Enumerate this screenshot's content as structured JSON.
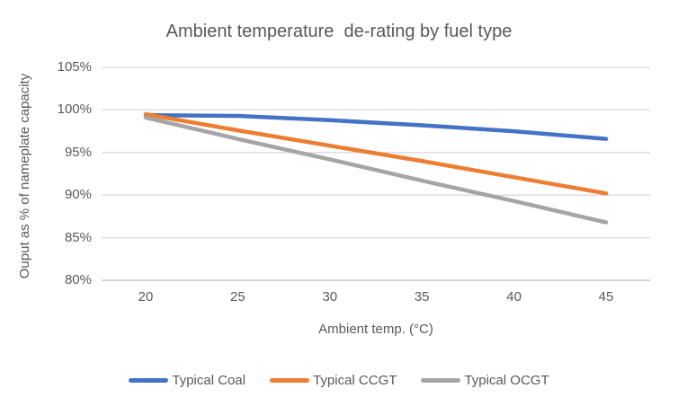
{
  "chart_data": {
    "type": "line",
    "title": "Ambient temperature  de-rating by fuel type",
    "xlabel": "Ambient temp. (°C)",
    "ylabel": "Ouput as % of nameplate capacity",
    "x": [
      20,
      25,
      30,
      35,
      40,
      45
    ],
    "x_tick_labels": [
      "20",
      "25",
      "30",
      "35",
      "40",
      "45"
    ],
    "y_ticks": [
      80,
      85,
      90,
      95,
      100,
      105
    ],
    "y_tick_labels": [
      "80%",
      "85%",
      "90%",
      "95%",
      "100%",
      "105%"
    ],
    "ylim": [
      80,
      105
    ],
    "xlim": [
      20,
      45
    ],
    "grid": "horizontal",
    "legend_position": "bottom",
    "series": [
      {
        "name": "Typical Coal",
        "color": "#4472C4",
        "values": [
          99.4,
          99.3,
          98.8,
          98.2,
          97.5,
          96.6
        ]
      },
      {
        "name": "Typical CCGT",
        "color": "#ED7D31",
        "values": [
          99.5,
          97.6,
          95.8,
          94.0,
          92.1,
          90.2
        ]
      },
      {
        "name": "Typical OCGT",
        "color": "#A5A5A5",
        "values": [
          99.1,
          96.6,
          94.2,
          91.7,
          89.3,
          86.8
        ]
      }
    ]
  },
  "colors": {
    "text": "#595959",
    "gridline": "#D9D9D9",
    "axis_line": "#BFBFBF",
    "background": "#FFFFFF"
  }
}
